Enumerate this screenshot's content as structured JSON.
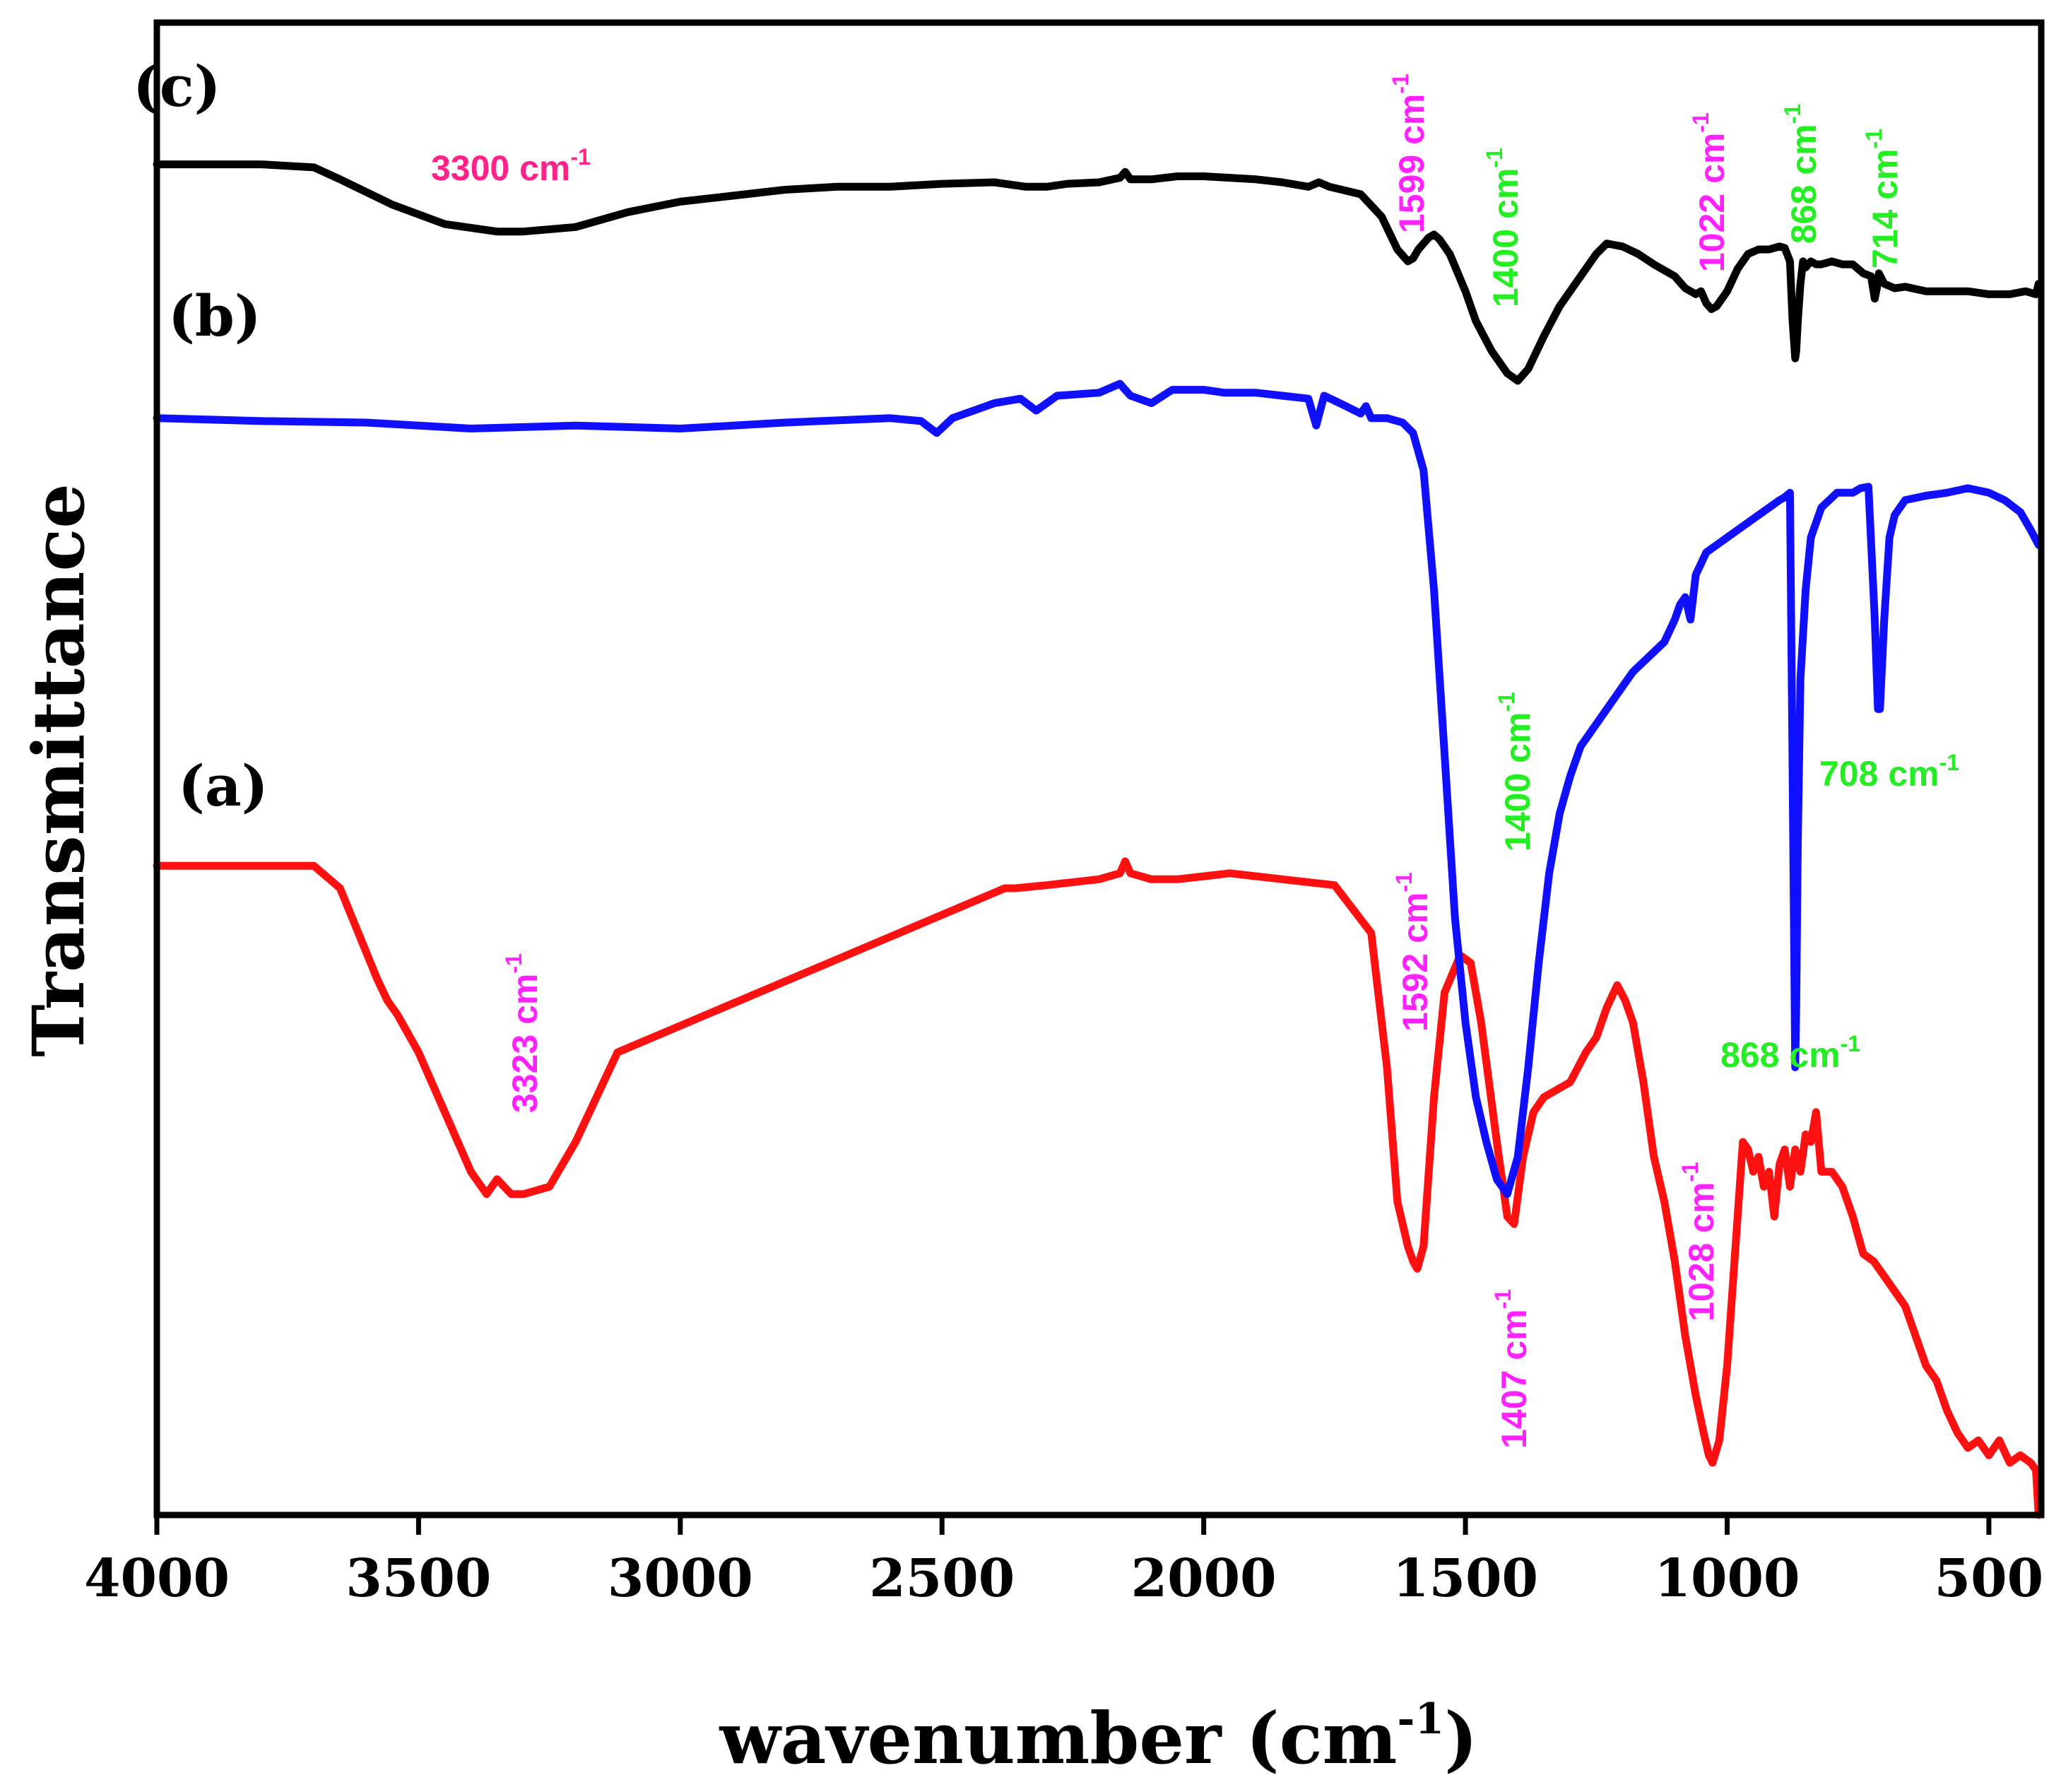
{
  "chart_data": {
    "type": "line",
    "xlabel": "wavenumber (cm",
    "xlabel_sup": "-1",
    "xlabel_close": ")",
    "ylabel": "Transmittance",
    "xlim": [
      4000,
      400
    ],
    "ylim": [
      0,
      1
    ],
    "x_ticks": [
      4000,
      3500,
      3000,
      2500,
      2000,
      1500,
      1000,
      500
    ],
    "x_tick_labels": [
      "4000",
      "3500",
      "3000",
      "2500",
      "2000",
      "1500",
      "1000",
      "500"
    ],
    "grid": false,
    "colors": {
      "a": "#ff1010",
      "b": "#1010ff",
      "c": "#000000",
      "magenta": "#ff22ff",
      "green": "#22ee22",
      "pink": "#ff2288"
    },
    "series": [
      {
        "id": "a",
        "label": "(a)",
        "color": "#ff1010",
        "x": [
          4000,
          3700,
          3650,
          3580,
          3560,
          3540,
          3500,
          3450,
          3400,
          3370,
          3350,
          3323,
          3300,
          3250,
          3200,
          3120,
          2380,
          2360,
          2300,
          2250,
          2200,
          2160,
          2150,
          2140,
          2100,
          2050,
          2000,
          1950,
          1900,
          1850,
          1750,
          1680,
          1650,
          1630,
          1610,
          1600,
          1592,
          1580,
          1560,
          1540,
          1510,
          1490,
          1470,
          1440,
          1420,
          1407,
          1390,
          1370,
          1350,
          1300,
          1270,
          1250,
          1230,
          1210,
          1195,
          1180,
          1160,
          1140,
          1120,
          1100,
          1080,
          1060,
          1045,
          1035,
          1028,
          1015,
          1000,
          990,
          980,
          970,
          960,
          950,
          940,
          930,
          920,
          910,
          900,
          890,
          880,
          870,
          860,
          850,
          840,
          830,
          820,
          800,
          780,
          760,
          740,
          720,
          700,
          680,
          660,
          640,
          620,
          600,
          580,
          560,
          540,
          520,
          500,
          480,
          460,
          440,
          420,
          410,
          405
        ],
        "y": [
          0.435,
          0.435,
          0.42,
          0.36,
          0.345,
          0.335,
          0.31,
          0.27,
          0.23,
          0.215,
          0.225,
          0.215,
          0.215,
          0.22,
          0.25,
          0.31,
          0.42,
          0.42,
          0.422,
          0.424,
          0.426,
          0.43,
          0.438,
          0.43,
          0.426,
          0.426,
          0.428,
          0.43,
          0.428,
          0.426,
          0.422,
          0.39,
          0.3,
          0.21,
          0.18,
          0.17,
          0.165,
          0.18,
          0.28,
          0.35,
          0.375,
          0.37,
          0.33,
          0.25,
          0.2,
          0.195,
          0.24,
          0.27,
          0.28,
          0.29,
          0.31,
          0.32,
          0.34,
          0.355,
          0.345,
          0.33,
          0.29,
          0.24,
          0.21,
          0.17,
          0.12,
          0.08,
          0.055,
          0.04,
          0.035,
          0.05,
          0.1,
          0.15,
          0.2,
          0.25,
          0.245,
          0.23,
          0.24,
          0.22,
          0.23,
          0.2,
          0.235,
          0.245,
          0.22,
          0.245,
          0.23,
          0.255,
          0.25,
          0.27,
          0.23,
          0.23,
          0.22,
          0.2,
          0.175,
          0.17,
          0.16,
          0.15,
          0.14,
          0.12,
          0.1,
          0.09,
          0.07,
          0.055,
          0.045,
          0.05,
          0.04,
          0.05,
          0.035,
          0.04,
          0.035,
          0.03,
          0.0
        ]
      },
      {
        "id": "b",
        "label": "(b)",
        "color": "#1010ff",
        "x": [
          4000,
          3800,
          3600,
          3400,
          3200,
          3000,
          2800,
          2600,
          2540,
          2510,
          2480,
          2400,
          2350,
          2320,
          2280,
          2200,
          2160,
          2150,
          2140,
          2100,
          2060,
          2000,
          1960,
          1900,
          1850,
          1800,
          1785,
          1770,
          1740,
          1700,
          1690,
          1680,
          1650,
          1620,
          1600,
          1580,
          1560,
          1540,
          1520,
          1500,
          1480,
          1460,
          1440,
          1420,
          1400,
          1380,
          1360,
          1340,
          1320,
          1300,
          1280,
          1250,
          1220,
          1200,
          1180,
          1150,
          1120,
          1100,
          1090,
          1080,
          1070,
          1060,
          1040,
          1000,
          960,
          920,
          900,
          890,
          880,
          875,
          870,
          868,
          865,
          860,
          850,
          840,
          820,
          790,
          760,
          745,
          730,
          718,
          712,
          708,
          700,
          690,
          680,
          660,
          620,
          580,
          540,
          500,
          470,
          440,
          420,
          405
        ],
        "y": [
          0.735,
          0.733,
          0.732,
          0.728,
          0.73,
          0.728,
          0.732,
          0.735,
          0.733,
          0.725,
          0.735,
          0.745,
          0.748,
          0.74,
          0.75,
          0.752,
          0.758,
          0.754,
          0.75,
          0.745,
          0.754,
          0.754,
          0.752,
          0.752,
          0.75,
          0.748,
          0.73,
          0.75,
          0.745,
          0.738,
          0.743,
          0.735,
          0.735,
          0.732,
          0.725,
          0.7,
          0.62,
          0.51,
          0.4,
          0.33,
          0.28,
          0.25,
          0.225,
          0.215,
          0.24,
          0.3,
          0.37,
          0.43,
          0.47,
          0.495,
          0.515,
          0.53,
          0.545,
          0.555,
          0.565,
          0.575,
          0.585,
          0.6,
          0.61,
          0.615,
          0.6,
          0.63,
          0.645,
          0.655,
          0.665,
          0.675,
          0.68,
          0.682,
          0.685,
          0.5,
          0.3,
          0.34,
          0.45,
          0.56,
          0.62,
          0.655,
          0.675,
          0.685,
          0.685,
          0.688,
          0.689,
          0.6,
          0.54,
          0.54,
          0.6,
          0.655,
          0.67,
          0.68,
          0.683,
          0.685,
          0.688,
          0.685,
          0.68,
          0.672,
          0.66,
          0.65
        ]
      },
      {
        "id": "c",
        "label": "(c)",
        "color": "#000000",
        "x": [
          4000,
          3800,
          3700,
          3650,
          3550,
          3450,
          3350,
          3300,
          3200,
          3100,
          3000,
          2900,
          2800,
          2700,
          2600,
          2500,
          2400,
          2340,
          2300,
          2260,
          2200,
          2160,
          2150,
          2140,
          2100,
          2050,
          2000,
          1950,
          1900,
          1850,
          1800,
          1780,
          1760,
          1700,
          1660,
          1630,
          1610,
          1600,
          1590,
          1570,
          1560,
          1550,
          1530,
          1500,
          1480,
          1450,
          1420,
          1400,
          1380,
          1350,
          1320,
          1280,
          1250,
          1230,
          1200,
          1170,
          1140,
          1100,
          1080,
          1060,
          1050,
          1040,
          1030,
          1020,
          1000,
          980,
          960,
          940,
          920,
          900,
          890,
          880,
          875,
          870,
          868,
          865,
          860,
          855,
          850,
          840,
          830,
          820,
          800,
          780,
          760,
          740,
          725,
          718,
          714,
          710,
          700,
          680,
          660,
          620,
          580,
          540,
          500,
          460,
          430,
          410,
          405
        ],
        "y": [
          0.905,
          0.905,
          0.903,
          0.895,
          0.878,
          0.865,
          0.86,
          0.86,
          0.863,
          0.873,
          0.88,
          0.884,
          0.888,
          0.89,
          0.89,
          0.892,
          0.893,
          0.89,
          0.89,
          0.892,
          0.893,
          0.896,
          0.9,
          0.895,
          0.895,
          0.897,
          0.897,
          0.896,
          0.895,
          0.893,
          0.89,
          0.893,
          0.89,
          0.885,
          0.87,
          0.848,
          0.84,
          0.842,
          0.848,
          0.856,
          0.858,
          0.855,
          0.845,
          0.82,
          0.8,
          0.78,
          0.765,
          0.76,
          0.768,
          0.79,
          0.81,
          0.83,
          0.845,
          0.852,
          0.85,
          0.845,
          0.838,
          0.83,
          0.822,
          0.818,
          0.82,
          0.812,
          0.808,
          0.81,
          0.82,
          0.835,
          0.845,
          0.848,
          0.848,
          0.85,
          0.849,
          0.84,
          0.8,
          0.775,
          0.78,
          0.8,
          0.825,
          0.84,
          0.836,
          0.84,
          0.838,
          0.838,
          0.84,
          0.838,
          0.838,
          0.832,
          0.83,
          0.815,
          0.822,
          0.832,
          0.825,
          0.822,
          0.823,
          0.82,
          0.82,
          0.82,
          0.818,
          0.818,
          0.82,
          0.818,
          0.825
        ]
      }
    ],
    "annotations": [
      {
        "id": "c-3300",
        "text": "3300 cm",
        "sup": "-1",
        "color": "#ff2288",
        "rotate": 0
      },
      {
        "id": "c-1599",
        "text": "1599 cm",
        "sup": "-1",
        "color": "#ff22ff",
        "rotate": -90
      },
      {
        "id": "c-1400",
        "text": "1400 cm",
        "sup": "-1",
        "color": "#22ee22",
        "rotate": -90
      },
      {
        "id": "c-1022",
        "text": "1022 cm",
        "sup": "-1",
        "color": "#ff22ff",
        "rotate": -90
      },
      {
        "id": "c-868",
        "text": "868 cm",
        "sup": "-1",
        "color": "#22ee22",
        "rotate": -90
      },
      {
        "id": "c-714",
        "text": "714 cm",
        "sup": "-1",
        "color": "#22ee22",
        "rotate": -90
      },
      {
        "id": "b-1400",
        "text": "1400 cm",
        "sup": "-1",
        "color": "#22ee22",
        "rotate": -90
      },
      {
        "id": "b-708",
        "text": "708 cm",
        "sup": "-1",
        "color": "#22ee22",
        "rotate": 0
      },
      {
        "id": "b-868",
        "text": "868 cm",
        "sup": "-1",
        "color": "#22ee22",
        "rotate": 0
      },
      {
        "id": "a-3323",
        "text": "3323 cm",
        "sup": "-1",
        "color": "#ff22ff",
        "rotate": -90
      },
      {
        "id": "a-1592",
        "text": "1592 cm",
        "sup": "-1",
        "color": "#ff22ff",
        "rotate": -90
      },
      {
        "id": "a-1407",
        "text": "1407 cm",
        "sup": "-1",
        "color": "#ff22ff",
        "rotate": -90
      },
      {
        "id": "a-1028",
        "text": "1028 cm",
        "sup": "-1",
        "color": "#ff22ff",
        "rotate": -90
      }
    ]
  }
}
